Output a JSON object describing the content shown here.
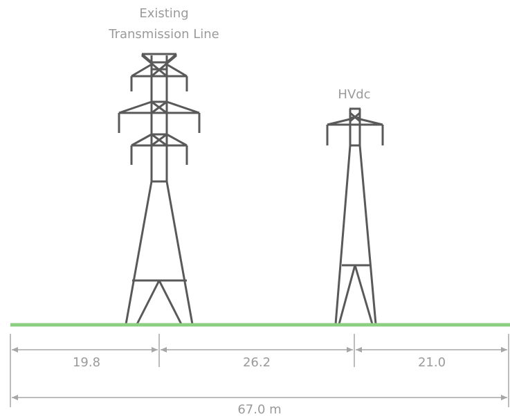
{
  "towers": [
    {
      "label_lines": [
        "Existing",
        "Transmission Line"
      ]
    },
    {
      "label_lines": [
        "HVdc"
      ]
    }
  ],
  "dimensions": {
    "segments": [
      "19.8",
      "26.2",
      "21.0"
    ],
    "total": "67.0 m"
  }
}
